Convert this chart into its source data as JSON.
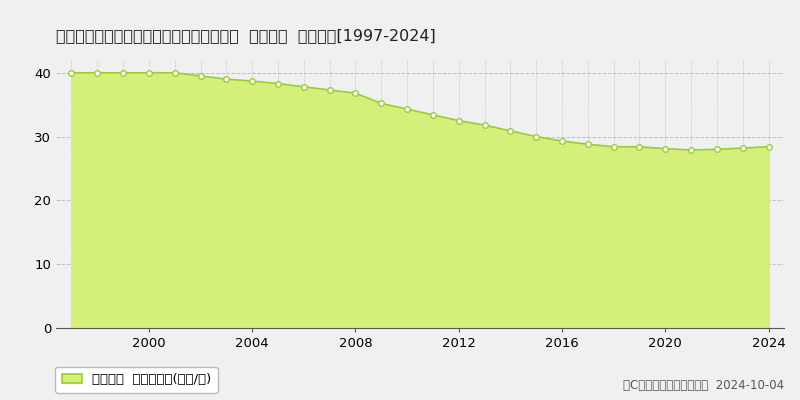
{
  "title": "鹿児島県鹿児島市田上５丁目２１８４番５  基準地価  地価推移[1997-2024]",
  "years": [
    1997,
    1998,
    1999,
    2000,
    2001,
    2002,
    2003,
    2004,
    2005,
    2006,
    2007,
    2008,
    2009,
    2010,
    2011,
    2012,
    2013,
    2014,
    2015,
    2016,
    2017,
    2018,
    2019,
    2020,
    2021,
    2022,
    2023,
    2024
  ],
  "values": [
    40.0,
    40.0,
    40.0,
    40.0,
    40.0,
    39.5,
    39.0,
    38.7,
    38.3,
    37.8,
    37.3,
    36.8,
    35.2,
    34.3,
    33.4,
    32.5,
    31.8,
    30.9,
    30.0,
    29.3,
    28.8,
    28.4,
    28.4,
    28.1,
    27.9,
    28.0,
    28.2,
    28.4
  ],
  "line_color": "#9acd32",
  "fill_color": "#d4f07a",
  "marker_face_color": "#ffffff",
  "marker_edge_color": "#9acd32",
  "background_color": "#f0f0f0",
  "plot_bg_color": "#f0f0f0",
  "grid_color": "#aaaaaa",
  "ylim": [
    0,
    42
  ],
  "yticks": [
    0,
    10,
    20,
    30,
    40
  ],
  "xlim_min": 1996.4,
  "xlim_max": 2024.6,
  "xticks": [
    2000,
    2004,
    2008,
    2012,
    2016,
    2020,
    2024
  ],
  "legend_label": "基準地価  平均坪単価(万円/坪)",
  "copyright_text": "（C）土地価格ドットコム  2024-10-04",
  "title_fontsize": 11.5,
  "tick_fontsize": 9.5,
  "legend_fontsize": 9.5,
  "copyright_fontsize": 8.5
}
